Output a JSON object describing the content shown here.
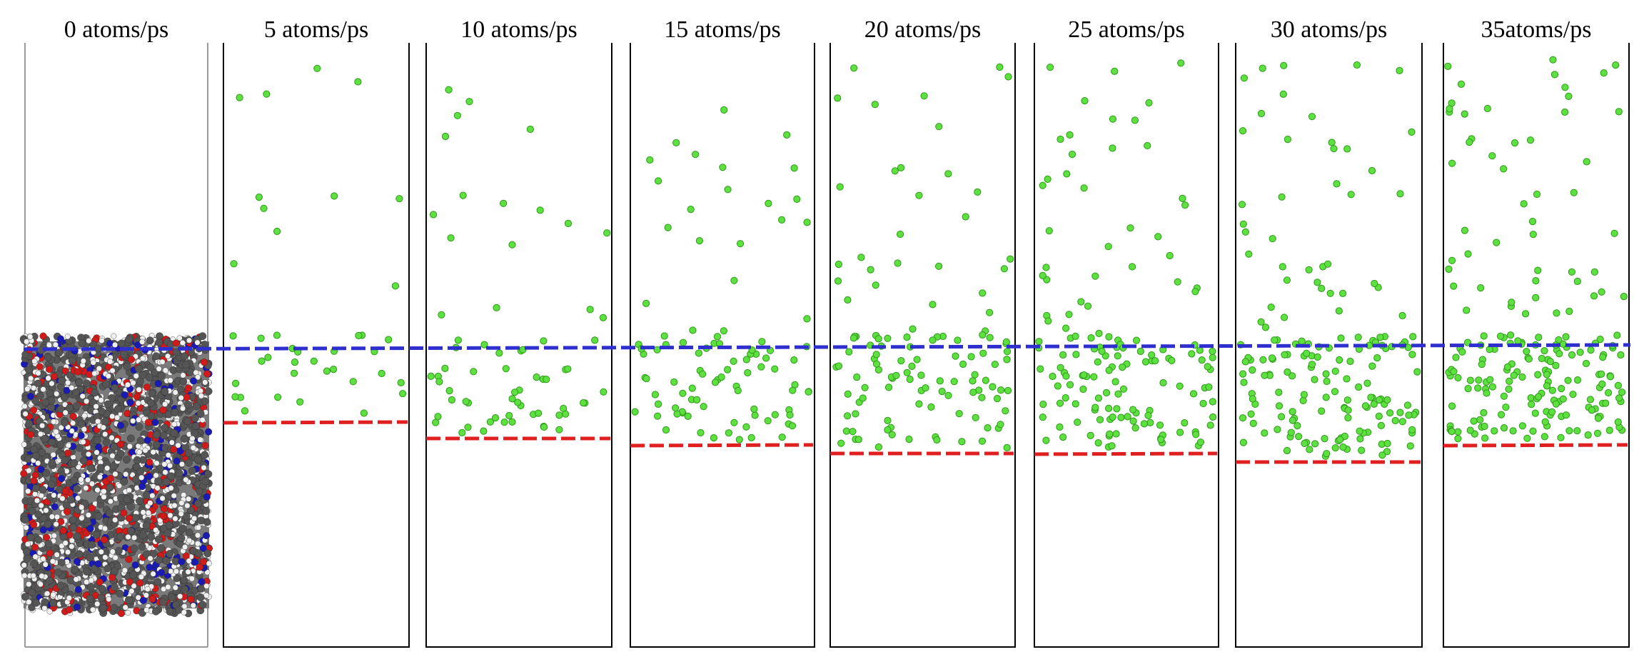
{
  "figure": {
    "panels": [
      {
        "label": "0 atoms/ps",
        "rate": 0
      },
      {
        "label": "5 atoms/ps",
        "rate": 5
      },
      {
        "label": "10 atoms/ps",
        "rate": 10
      },
      {
        "label": "15 atoms/ps",
        "rate": 15
      },
      {
        "label": "20 atoms/ps",
        "rate": 20
      },
      {
        "label": "25 atoms/ps",
        "rate": 25
      },
      {
        "label": "30 atoms/ps",
        "rate": 30
      },
      {
        "label": "35atoms/ps",
        "rate": 35
      }
    ],
    "colors": {
      "blue_line": "#2f2fd0",
      "red_line": "#e02020",
      "green_atom": "#5ee040",
      "green_atom_edge": "#2e9a1a",
      "slab_carbon": "#555555",
      "slab_oxygen": "#d11a1a",
      "slab_nitrogen": "#1a1ab5",
      "slab_hydrogen": "#f0f0f0",
      "border": "#000000"
    }
  }
}
